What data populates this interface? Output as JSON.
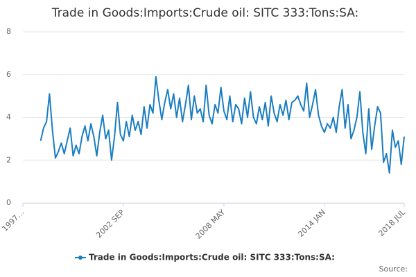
{
  "chart_data": {
    "type": "line",
    "title": "Trade in Goods:Imports:Crude oil: SITC 333:Tons:SA:",
    "source": "Source:",
    "x": [
      "1998-01",
      "1998-03",
      "1998-05",
      "1998-07",
      "1998-09",
      "1998-11",
      "1999-01",
      "1999-03",
      "1999-05",
      "1999-07",
      "1999-09",
      "1999-11",
      "2000-01",
      "2000-03",
      "2000-05",
      "2000-07",
      "2000-09",
      "2000-11",
      "2001-01",
      "2001-03",
      "2001-05",
      "2001-07",
      "2001-09",
      "2001-11",
      "2002-01",
      "2002-03",
      "2002-05",
      "2002-07",
      "2002-09",
      "2002-11",
      "2003-01",
      "2003-03",
      "2003-05",
      "2003-07",
      "2003-09",
      "2003-11",
      "2004-01",
      "2004-03",
      "2004-05",
      "2004-07",
      "2004-09",
      "2004-11",
      "2005-01",
      "2005-03",
      "2005-05",
      "2005-07",
      "2005-09",
      "2005-11",
      "2006-01",
      "2006-03",
      "2006-05",
      "2006-07",
      "2006-09",
      "2006-11",
      "2007-01",
      "2007-03",
      "2007-05",
      "2007-07",
      "2007-09",
      "2007-11",
      "2008-01",
      "2008-03",
      "2008-05",
      "2008-07",
      "2008-09",
      "2008-11",
      "2009-01",
      "2009-03",
      "2009-05",
      "2009-07",
      "2009-09",
      "2009-11",
      "2010-01",
      "2010-03",
      "2010-05",
      "2010-07",
      "2010-09",
      "2010-11",
      "2011-01",
      "2011-03",
      "2011-05",
      "2011-07",
      "2011-09",
      "2011-11",
      "2012-01",
      "2012-03",
      "2012-05",
      "2012-07",
      "2012-09",
      "2012-11",
      "2013-01",
      "2013-03",
      "2013-05",
      "2013-07",
      "2013-09",
      "2013-11",
      "2014-01",
      "2014-03",
      "2014-05",
      "2014-07",
      "2014-09",
      "2014-11",
      "2015-01",
      "2015-03",
      "2015-05",
      "2015-07",
      "2015-09",
      "2015-11",
      "2016-01",
      "2016-03",
      "2016-05",
      "2016-07",
      "2016-09",
      "2016-11",
      "2017-01",
      "2017-03",
      "2017-05",
      "2017-07",
      "2017-09",
      "2017-11",
      "2018-01",
      "2018-03",
      "2018-05",
      "2018-07"
    ],
    "series": [
      {
        "name": "Trade in Goods:Imports:Crude oil: SITC 333:Tons:SA:",
        "color": "#1a7dc0",
        "values": [
          2.9,
          3.5,
          3.8,
          5.1,
          3.4,
          2.1,
          2.4,
          2.8,
          2.3,
          2.9,
          3.5,
          2.2,
          2.7,
          2.3,
          3.1,
          3.6,
          2.9,
          3.7,
          3.1,
          2.2,
          3.3,
          4.1,
          3.0,
          3.4,
          2.0,
          3.1,
          4.7,
          3.2,
          2.9,
          3.8,
          3.1,
          4.1,
          3.4,
          3.8,
          3.2,
          4.5,
          3.5,
          4.6,
          4.2,
          5.9,
          4.8,
          3.9,
          4.7,
          5.3,
          4.4,
          5.1,
          4.0,
          4.9,
          3.8,
          4.6,
          5.5,
          3.9,
          5.0,
          4.2,
          4.4,
          3.8,
          5.5,
          4.1,
          3.7,
          4.6,
          4.2,
          5.4,
          4.3,
          3.9,
          5.0,
          3.8,
          4.6,
          4.4,
          3.7,
          4.9,
          4.0,
          5.2,
          4.0,
          3.7,
          4.5,
          3.9,
          4.7,
          3.6,
          5.0,
          4.2,
          3.8,
          4.6,
          4.1,
          4.8,
          3.9,
          4.7,
          4.8,
          5.0,
          4.6,
          4.3,
          5.6,
          4.0,
          4.6,
          5.3,
          4.1,
          3.6,
          3.3,
          3.7,
          3.5,
          4.0,
          3.3,
          4.5,
          5.3,
          3.5,
          4.6,
          3.0,
          3.4,
          4.0,
          5.2,
          3.3,
          2.3,
          4.4,
          2.5,
          3.6,
          4.5,
          4.2,
          1.9,
          2.3,
          1.4,
          3.4,
          2.6,
          2.9,
          1.8,
          3.1
        ]
      }
    ],
    "xlim": [
      "1997-01",
      "2018-07"
    ],
    "xticks": [
      {
        "value": "1997-01",
        "label": "1997…"
      },
      {
        "value": "2002-09",
        "label": "2002 SEP"
      },
      {
        "value": "2008-05",
        "label": "2008 MAY"
      },
      {
        "value": "2014-01",
        "label": "2014 JAN"
      },
      {
        "value": "2018-07",
        "label": "2018 JUL"
      }
    ],
    "ylim": [
      0,
      8
    ],
    "yticks": [
      0,
      2,
      4,
      6,
      8
    ],
    "grid": true
  }
}
